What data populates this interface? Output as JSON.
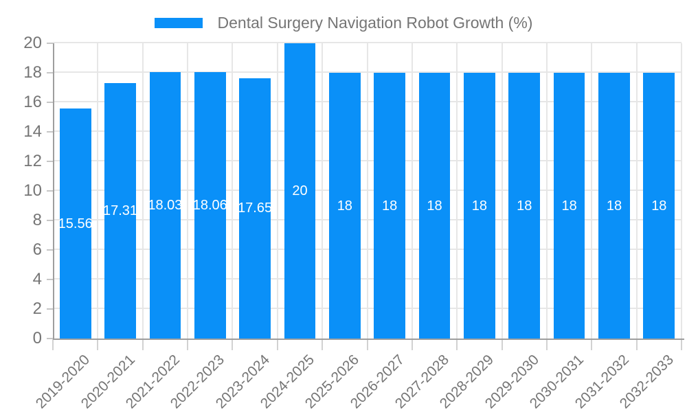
{
  "legend": {
    "label": "Dental Surgery Navigation Robot Growth (%)"
  },
  "colors": {
    "bar": "#0a90f8",
    "grid": "#e6e6e6",
    "axis_line": "#9e9e9e",
    "tick_label": "#757575",
    "title_text": "#757575",
    "value_label": "#ffffff",
    "background": "#ffffff"
  },
  "chart_data": {
    "type": "bar",
    "title": "Dental Surgery Navigation Robot Growth (%)",
    "categories": [
      "2019-2020",
      "2020-2021",
      "2021-2022",
      "2022-2023",
      "2023-2024",
      "2024-2025",
      "2025-2026",
      "2026-2027",
      "2027-2028",
      "2028-2029",
      "2029-2030",
      "2030-2031",
      "2031-2032",
      "2032-2033"
    ],
    "values": [
      15.56,
      17.31,
      18.03,
      18.06,
      17.65,
      20,
      18,
      18,
      18,
      18,
      18,
      18,
      18,
      18
    ],
    "value_labels": [
      "15.56",
      "17.31",
      "18.03",
      "18.06",
      "17.65",
      "20",
      "18",
      "18",
      "18",
      "18",
      "18",
      "18",
      "18",
      "18"
    ],
    "xlabel": "",
    "ylabel": "",
    "ylim": [
      0,
      20
    ],
    "ytick_step": 2,
    "yticks": [
      0,
      2,
      4,
      6,
      8,
      10,
      12,
      14,
      16,
      18,
      20
    ],
    "grid": true,
    "legend_position": "top",
    "x_label_rotation_deg": -45,
    "bar_width_fraction": 0.7
  }
}
